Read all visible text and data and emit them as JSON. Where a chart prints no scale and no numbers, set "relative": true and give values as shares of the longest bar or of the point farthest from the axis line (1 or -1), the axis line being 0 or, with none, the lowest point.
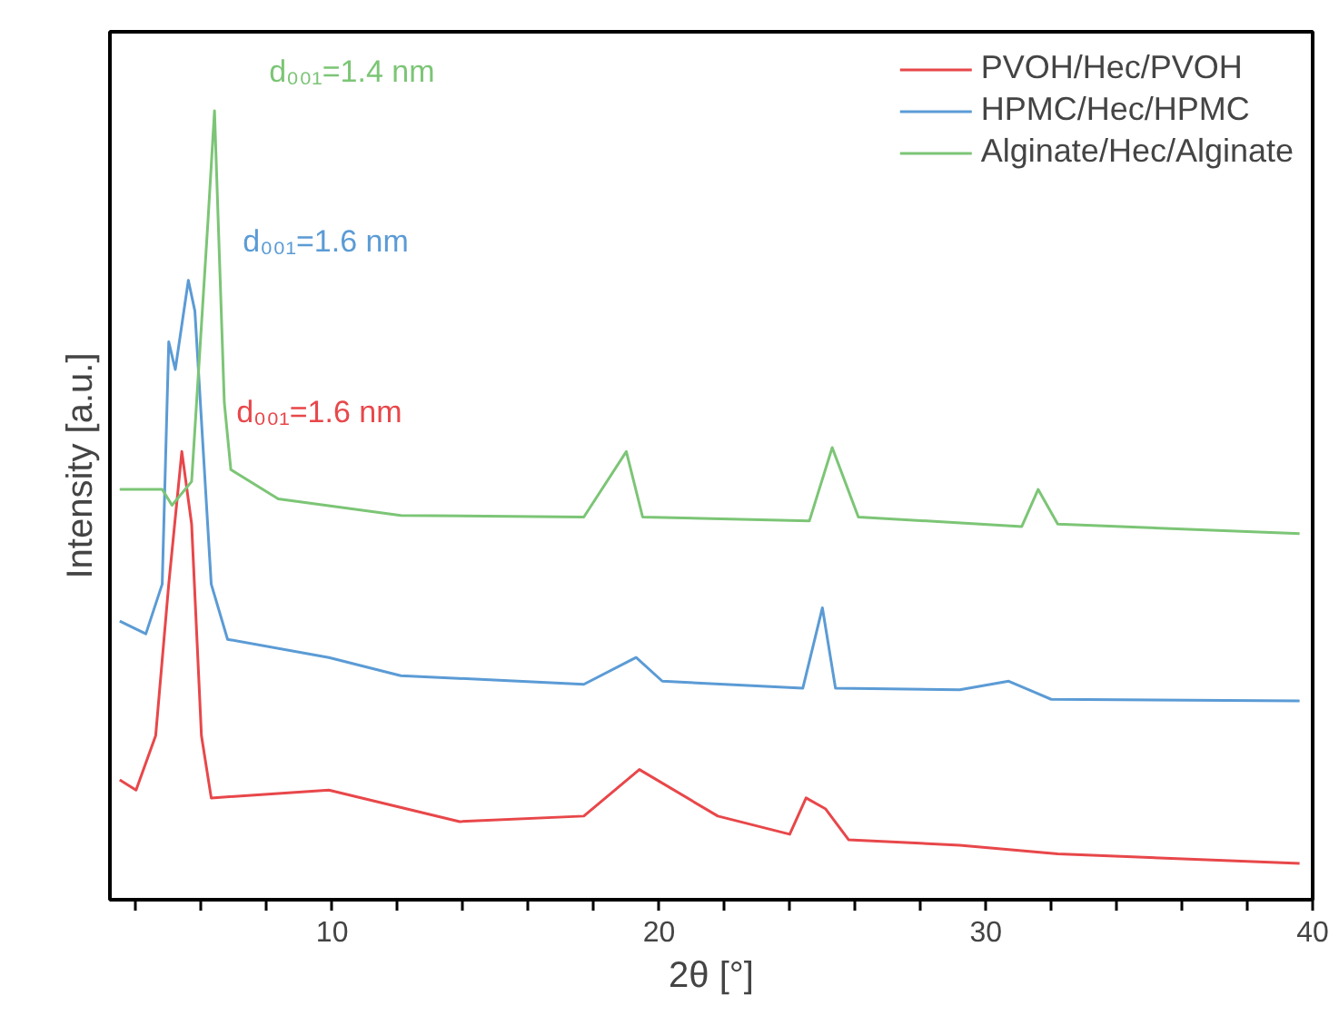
{
  "chart_data": {
    "type": "line",
    "xlabel": "2θ [°]",
    "ylabel": "Intensity [a.u.]",
    "relative": true,
    "xlim": [
      3.2,
      40
    ],
    "xticks": [
      {
        "value": 4,
        "label": null
      },
      {
        "value": 6,
        "label": null
      },
      {
        "value": 8,
        "label": null
      },
      10,
      {
        "value": 12,
        "label": null
      },
      {
        "value": 14,
        "label": null
      },
      {
        "value": 16,
        "label": null
      },
      {
        "value": 18,
        "label": null
      },
      20,
      {
        "value": 22,
        "label": null
      },
      {
        "value": 24,
        "label": null
      },
      {
        "value": 26,
        "label": null
      },
      {
        "value": 28,
        "label": null
      },
      30,
      {
        "value": 32,
        "label": null
      },
      {
        "value": 34,
        "label": null
      },
      {
        "value": 36,
        "label": null
      },
      {
        "value": 38,
        "label": null
      },
      40
    ],
    "tick_labels": "x",
    "grid": false,
    "legend": "top right",
    "marker": "none",
    "line_style": "solid",
    "series": [
      {
        "name": "PVOH/Hec/PVOH",
        "color": "#e8474a",
        "x": [
          3.5,
          4.0,
          4.6,
          5.0,
          5.4,
          5.7,
          6.0,
          6.3,
          9.9,
          13.9,
          17.7,
          19.4,
          21.8,
          24.0,
          24.5,
          25.1,
          25.8,
          29.2,
          32.2,
          39.6
        ],
        "values": [
          0.152,
          0.139,
          0.208,
          0.4,
          0.568,
          0.476,
          0.208,
          0.129,
          0.139,
          0.099,
          0.106,
          0.165,
          0.106,
          0.083,
          0.129,
          0.115,
          0.076,
          0.069,
          0.058,
          0.046
        ]
      },
      {
        "name": "HPMC/Hec/HPMC",
        "color": "#5b9bd5",
        "x": [
          3.5,
          4.3,
          4.8,
          5.0,
          5.2,
          5.6,
          5.8,
          6.3,
          6.8,
          9.9,
          12.1,
          17.7,
          19.3,
          20.1,
          24.4,
          25.0,
          25.4,
          29.2,
          30.7,
          32.0,
          39.6
        ],
        "values": [
          0.353,
          0.337,
          0.4,
          0.707,
          0.672,
          0.785,
          0.746,
          0.4,
          0.33,
          0.307,
          0.284,
          0.273,
          0.307,
          0.277,
          0.268,
          0.37,
          0.268,
          0.266,
          0.277,
          0.254,
          0.252
        ]
      },
      {
        "name": "Alginate/Hec/Alginate",
        "color": "#7cc576",
        "x": [
          3.5,
          4.8,
          5.1,
          5.7,
          6.2,
          6.4,
          6.7,
          6.9,
          8.35,
          12.1,
          17.7,
          19.0,
          19.5,
          24.6,
          25.3,
          26.1,
          31.1,
          31.6,
          32.2,
          39.6
        ],
        "values": [
          0.52,
          0.52,
          0.5,
          0.53,
          0.86,
          1.0,
          0.63,
          0.545,
          0.508,
          0.487,
          0.485,
          0.568,
          0.485,
          0.48,
          0.573,
          0.485,
          0.473,
          0.52,
          0.476,
          0.464
        ]
      }
    ],
    "annotations": [
      {
        "text": "d₀₀₁=1.6 nm",
        "x": 5.4,
        "y": 0.568
      },
      {
        "text": "d₀₀₁=1.6 nm",
        "x": 5.6,
        "y": 0.785
      },
      {
        "text": "d₀₀₁=1.4 nm",
        "x": 6.4,
        "y": 1.0
      }
    ]
  }
}
